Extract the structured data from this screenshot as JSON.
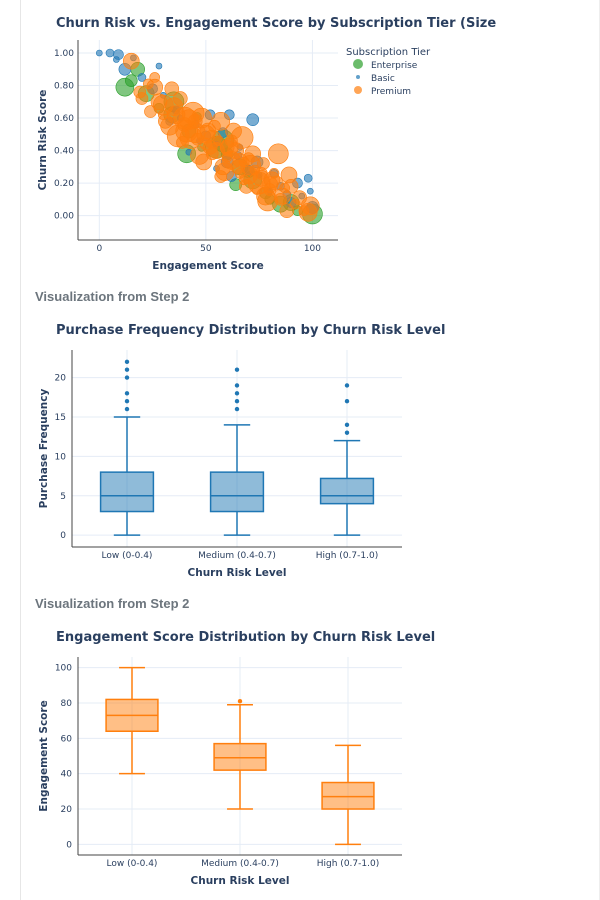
{
  "headings": {
    "step2_a": "Visualization from Step 2",
    "step2_b": "Visualization from Step 2"
  },
  "chart_data": [
    {
      "type": "scatter",
      "title": "Churn Risk vs. Engagement Score by Subscription Tier (Size",
      "xlabel": "Engagement Score",
      "ylabel": "Churn Risk Score",
      "xlim": [
        -10,
        112
      ],
      "ylim": [
        -0.15,
        1.08
      ],
      "x_ticks": [
        0,
        50,
        100
      ],
      "y_ticks": [
        1.0,
        0.8,
        0.6,
        0.4,
        0.2,
        0.0
      ],
      "y_tick_labels": [
        "1.00",
        "0.80",
        "0.60",
        "0.40",
        "0.20",
        "0.00"
      ],
      "legend": {
        "title": "Subscription Tier",
        "position": "top-right",
        "entries": [
          "Enterprise",
          "Basic",
          "Premium"
        ]
      },
      "series": [
        {
          "name": "Enterprise",
          "color": "#2ca02c",
          "points": [
            [
              12,
              0.79
            ],
            [
              15,
              0.83
            ],
            [
              22,
              0.75
            ],
            [
              28,
              0.66
            ],
            [
              35,
              0.7
            ],
            [
              42,
              0.52
            ],
            [
              48,
              0.42
            ],
            [
              55,
              0.42
            ],
            [
              60,
              0.38
            ],
            [
              66,
              0.3
            ],
            [
              72,
              0.22
            ],
            [
              78,
              0.14
            ],
            [
              85,
              0.07
            ],
            [
              93,
              0.03
            ],
            [
              100,
              0.01
            ],
            [
              18,
              0.9
            ],
            [
              46,
              0.61
            ],
            [
              58,
              0.46
            ],
            [
              70,
              0.27
            ],
            [
              90,
              0.08
            ],
            [
              41,
              0.38
            ],
            [
              64,
              0.19
            ],
            [
              34,
              0.62
            ],
            [
              80,
              0.1
            ]
          ]
        },
        {
          "name": "Basic",
          "color": "#1f77b4",
          "points": [
            [
              0,
              1.0
            ],
            [
              5,
              1.0
            ],
            [
              9,
              0.99
            ],
            [
              8,
              0.96
            ],
            [
              12,
              0.9
            ],
            [
              20,
              0.85
            ],
            [
              25,
              0.78
            ],
            [
              30,
              0.74
            ],
            [
              38,
              0.6
            ],
            [
              45,
              0.56
            ],
            [
              50,
              0.49
            ],
            [
              55,
              0.44
            ],
            [
              60,
              0.33
            ],
            [
              65,
              0.37
            ],
            [
              70,
              0.28
            ],
            [
              75,
              0.25
            ],
            [
              80,
              0.15
            ],
            [
              85,
              0.18
            ],
            [
              90,
              0.08
            ],
            [
              95,
              0.12
            ],
            [
              100,
              0.05
            ],
            [
              98,
              0.23
            ],
            [
              93,
              0.2
            ],
            [
              42,
              0.39
            ],
            [
              47,
              0.46
            ],
            [
              33,
              0.58
            ],
            [
              58,
              0.51
            ],
            [
              66,
              0.42
            ],
            [
              74,
              0.33
            ],
            [
              82,
              0.26
            ],
            [
              61,
              0.62
            ],
            [
              16,
              0.97
            ],
            [
              99,
              0.15
            ],
            [
              88,
              0.13
            ],
            [
              52,
              0.62
            ],
            [
              28,
              0.92
            ],
            [
              72,
              0.59
            ],
            [
              36,
              0.65
            ],
            [
              62,
              0.24
            ],
            [
              55,
              0.29
            ]
          ]
        },
        {
          "name": "Premium",
          "color": "#ff7f0e",
          "points": [
            [
              20,
              0.72
            ],
            [
              26,
              0.79
            ],
            [
              30,
              0.62
            ],
            [
              35,
              0.67
            ],
            [
              40,
              0.56
            ],
            [
              45,
              0.51
            ],
            [
              50,
              0.44
            ],
            [
              55,
              0.4
            ],
            [
              60,
              0.36
            ],
            [
              65,
              0.3
            ],
            [
              70,
              0.25
            ],
            [
              75,
              0.2
            ],
            [
              80,
              0.16
            ],
            [
              86,
              0.12
            ],
            [
              92,
              0.07
            ],
            [
              98,
              0.02
            ],
            [
              38,
              0.72
            ],
            [
              48,
              0.6
            ],
            [
              62,
              0.46
            ],
            [
              72,
              0.38
            ],
            [
              82,
              0.26
            ],
            [
              88,
              0.03
            ],
            [
              33,
              0.55
            ],
            [
              43,
              0.48
            ],
            [
              53,
              0.38
            ],
            [
              58,
              0.3
            ],
            [
              68,
              0.22
            ],
            [
              78,
              0.12
            ],
            [
              90,
              0.18
            ],
            [
              84,
              0.38
            ],
            [
              19,
              0.76
            ],
            [
              28,
              0.7
            ],
            [
              23,
              0.81
            ],
            [
              31,
              0.58
            ],
            [
              36,
              0.62
            ],
            [
              41,
              0.52
            ],
            [
              46,
              0.47
            ],
            [
              51,
              0.52
            ],
            [
              56,
              0.46
            ],
            [
              61,
              0.42
            ],
            [
              66,
              0.34
            ],
            [
              71,
              0.31
            ],
            [
              76,
              0.26
            ],
            [
              81,
              0.22
            ],
            [
              87,
              0.17
            ],
            [
              94,
              0.11
            ],
            [
              99,
              0.06
            ],
            [
              44,
              0.63
            ],
            [
              54,
              0.55
            ],
            [
              64,
              0.4
            ],
            [
              74,
              0.16
            ],
            [
              59,
              0.27
            ],
            [
              69,
              0.18
            ],
            [
              79,
              0.09
            ],
            [
              39,
              0.45
            ],
            [
              49,
              0.33
            ],
            [
              26,
              0.85
            ],
            [
              34,
              0.78
            ],
            [
              57,
              0.58
            ],
            [
              67,
              0.48
            ],
            [
              77,
              0.32
            ],
            [
              89,
              0.25
            ],
            [
              96,
              0.03
            ],
            [
              62,
              0.34
            ],
            [
              52,
              0.42
            ],
            [
              42,
              0.59
            ],
            [
              24,
              0.64
            ],
            [
              63,
              0.52
            ],
            [
              73,
              0.28
            ],
            [
              83,
              0.2
            ],
            [
              47,
              0.37
            ],
            [
              37,
              0.49
            ],
            [
              57,
              0.24
            ],
            [
              15,
              0.95
            ],
            [
              66,
              0.26
            ],
            [
              53,
              0.47
            ],
            [
              45,
              0.58
            ],
            [
              30,
              0.68
            ],
            [
              85,
              0.1
            ],
            [
              76,
              0.23
            ],
            [
              68,
              0.33
            ],
            [
              60,
              0.42
            ],
            [
              50,
              0.5
            ],
            [
              40,
              0.6
            ],
            [
              70,
              0.35
            ],
            [
              80,
              0.19
            ]
          ]
        }
      ]
    },
    {
      "type": "box",
      "title": "Purchase Frequency Distribution by Churn Risk Level",
      "xlabel": "Churn Risk Level",
      "ylabel": "Purchase Frequency",
      "ylim": [
        -1.5,
        23.5
      ],
      "y_ticks": [
        0,
        5,
        10,
        15,
        20
      ],
      "color": "#1f77b4",
      "categories": [
        "Low (0-0.4)",
        "Medium (0.4-0.7)",
        "High (0.7-1.0)"
      ],
      "boxes": [
        {
          "min": 0,
          "q1": 3,
          "median": 5,
          "q3": 8,
          "max": 15,
          "outliers": [
            16,
            17,
            18,
            20,
            21,
            22
          ]
        },
        {
          "min": 0,
          "q1": 3,
          "median": 5,
          "q3": 8,
          "max": 14,
          "outliers": [
            16,
            17,
            18,
            19,
            21
          ]
        },
        {
          "min": 0,
          "q1": 4,
          "median": 5,
          "q3": 7.2,
          "max": 12,
          "outliers": [
            13,
            14,
            17,
            19
          ]
        }
      ]
    },
    {
      "type": "box",
      "title": "Engagement Score Distribution by Churn Risk Level",
      "xlabel": "Churn Risk Level",
      "ylabel": "Engagement Score",
      "ylim": [
        -6,
        106
      ],
      "y_ticks": [
        0,
        20,
        40,
        60,
        80,
        100
      ],
      "color": "#ff7f0e",
      "categories": [
        "Low (0-0.4)",
        "Medium (0.4-0.7)",
        "High (0.7-1.0)"
      ],
      "boxes": [
        {
          "min": 40,
          "q1": 64,
          "median": 73,
          "q3": 82,
          "max": 100,
          "outliers": []
        },
        {
          "min": 20,
          "q1": 42,
          "median": 49,
          "q3": 57,
          "max": 79,
          "outliers": [
            81
          ]
        },
        {
          "min": 0,
          "q1": 20,
          "median": 27,
          "q3": 35,
          "max": 56,
          "outliers": []
        }
      ]
    }
  ]
}
